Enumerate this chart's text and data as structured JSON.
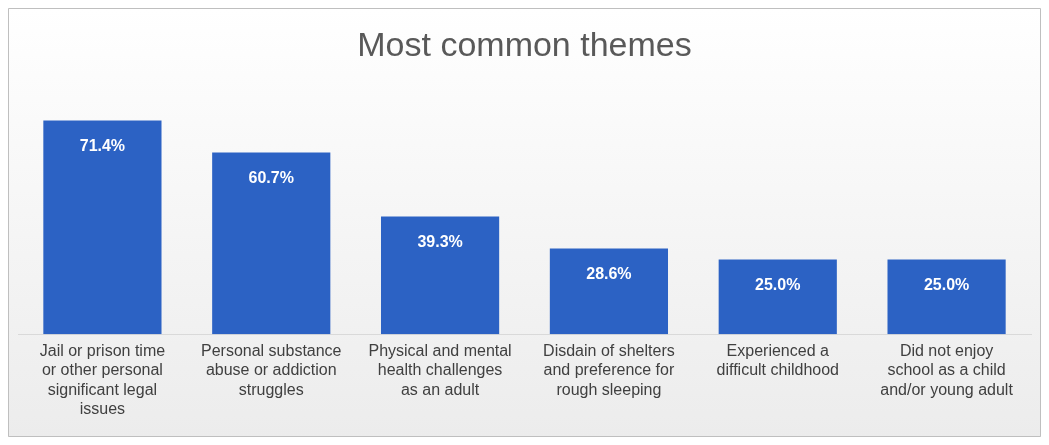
{
  "chart_data": {
    "type": "bar",
    "title": "Most common themes",
    "categories": [
      "Jail or prison time or other personal significant legal issues",
      "Personal substance abuse or addiction struggles",
      "Physical and mental health challenges as an adult",
      "Disdain of shelters and preference for rough sleeping",
      "Experienced a difficult childhood",
      "Did not enjoy school as a child and/or young adult"
    ],
    "values": [
      71.4,
      60.7,
      39.3,
      28.6,
      25.0,
      25.0
    ],
    "value_labels": [
      "71.4%",
      "60.7%",
      "39.3%",
      "28.6%",
      "25.0%",
      "25.0%"
    ],
    "color": "#2c62c4",
    "grid": false,
    "legend": false
  }
}
